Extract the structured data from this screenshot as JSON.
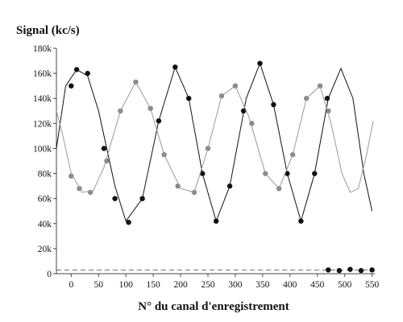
{
  "chart_data": {
    "type": "scatter",
    "ylabel": "Signal (kc/s)",
    "xlabel": "N° du canal d'enregistrement",
    "xlim": [
      -27,
      555
    ],
    "ylim": [
      0,
      180000
    ],
    "x_ticks": [
      0,
      50,
      100,
      150,
      200,
      250,
      300,
      350,
      400,
      450,
      500,
      550
    ],
    "y_ticks": [
      0,
      20000,
      40000,
      60000,
      80000,
      100000,
      120000,
      140000,
      160000,
      180000
    ],
    "y_tick_labels": [
      "0",
      "20k",
      "40k",
      "60k",
      "80k",
      "100k",
      "120k",
      "140k",
      "160k",
      "180k"
    ],
    "grid": false,
    "baseline": {
      "style": "dashed",
      "value": 3000
    },
    "series": [
      {
        "style": "markers",
        "color": "#111111",
        "x": [
          0,
          10,
          30,
          60,
          80,
          105,
          130,
          160,
          190,
          215,
          240,
          265,
          290,
          315,
          345,
          370,
          395,
          420,
          445,
          468
        ],
        "values": [
          150000,
          163000,
          160000,
          100000,
          60000,
          41000,
          60000,
          122000,
          165000,
          140000,
          80000,
          42000,
          70000,
          130000,
          168000,
          135000,
          80000,
          42000,
          80000,
          140000
        ]
      },
      {
        "style": "markers",
        "color": "#888888",
        "x": [
          0,
          15,
          35,
          65,
          90,
          118,
          145,
          170,
          195,
          225,
          250,
          275,
          300,
          330,
          355,
          380,
          405,
          430,
          455,
          470
        ],
        "values": [
          78000,
          68000,
          65000,
          90000,
          130000,
          153000,
          132000,
          95000,
          70000,
          65000,
          100000,
          142000,
          150000,
          120000,
          80000,
          68000,
          95000,
          140000,
          150000,
          130000
        ]
      },
      {
        "style": "line",
        "color": "#111111",
        "x": [
          -27,
          -10,
          10,
          30,
          50,
          80,
          100,
          130,
          160,
          190,
          215,
          240,
          265,
          290,
          320,
          345,
          370,
          395,
          420,
          445,
          470,
          493,
          515,
          535,
          550
        ],
        "values": [
          100000,
          150000,
          163000,
          158000,
          130000,
          70000,
          42000,
          60000,
          122000,
          165000,
          140000,
          80000,
          42000,
          70000,
          140000,
          168000,
          135000,
          80000,
          42000,
          80000,
          140000,
          164000,
          140000,
          80000,
          50000
        ]
      },
      {
        "style": "line",
        "color": "#999999",
        "x": [
          -27,
          -15,
          0,
          20,
          40,
          60,
          90,
          118,
          145,
          170,
          200,
          225,
          250,
          275,
          300,
          325,
          355,
          380,
          405,
          430,
          455,
          475,
          495,
          510,
          525,
          540,
          552
        ],
        "values": [
          130000,
          110000,
          80000,
          65000,
          66000,
          85000,
          130000,
          153000,
          132000,
          95000,
          68000,
          65000,
          100000,
          142000,
          150000,
          125000,
          80000,
          68000,
          95000,
          140000,
          150000,
          120000,
          80000,
          65000,
          68000,
          95000,
          122000
        ]
      },
      {
        "style": "markers",
        "color": "#111111",
        "x": [
          470,
          490,
          510,
          530,
          550
        ],
        "values": [
          3000,
          2500,
          3500,
          2500,
          3000
        ]
      }
    ]
  }
}
